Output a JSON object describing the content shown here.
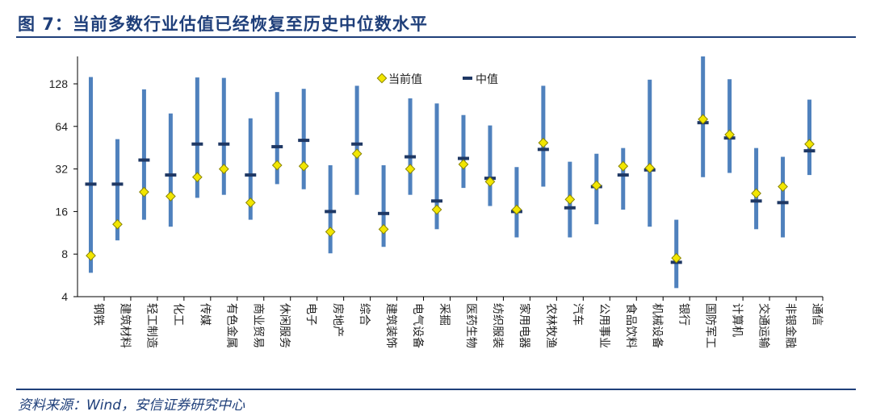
{
  "figure": {
    "title": "图 7：当前多数行业估值已经恢复至历史中位数水平",
    "source": "资料来源：Wind，安信证券研究中心"
  },
  "colors": {
    "range_bar": "#4f81bd",
    "current_marker": "#f2e600",
    "median_marker": "#1f3864",
    "rule": "#1f3f7a"
  },
  "chart_data": {
    "type": "range",
    "scale": "log2",
    "ylim": [
      4,
      200
    ],
    "yticks": [
      4,
      8,
      16,
      32,
      64,
      128
    ],
    "legend": {
      "position": "top-center",
      "entries": [
        "当前值",
        "中值"
      ]
    },
    "categories": [
      "钢铁",
      "建筑材料",
      "轻工制造",
      "化工",
      "传媒",
      "有色金属",
      "商业贸易",
      "休闲服务",
      "电子",
      "房地产",
      "综合",
      "建筑装饰",
      "电气设备",
      "采掘",
      "医药生物",
      "纺织服装",
      "家用电器",
      "农林牧渔",
      "汽车",
      "公用事业",
      "食品饮料",
      "机械设备",
      "银行",
      "国防军工",
      "计算机",
      "交通运输",
      "非银金融",
      "通信"
    ],
    "series": [
      {
        "name": "当前值",
        "values": [
          7.8,
          13,
          22,
          20.5,
          28,
          32,
          18.5,
          34,
          33.5,
          11.5,
          41,
          12,
          32,
          16.5,
          34.5,
          26,
          16.5,
          49,
          19.5,
          24.5,
          33.5,
          32.5,
          7.5,
          72,
          56,
          21.5,
          24,
          48
        ]
      },
      {
        "name": "中值",
        "values": [
          25,
          25,
          37,
          29,
          48,
          48,
          29,
          46,
          51,
          16,
          48,
          15.5,
          39,
          19,
          38,
          27.5,
          16,
          44,
          17,
          24,
          29,
          31.5,
          7,
          68,
          53,
          19,
          18.5,
          43
        ]
      }
    ],
    "range_high": [
      143,
      52,
      117,
      79,
      142,
      141,
      73,
      112,
      118,
      34,
      124,
      34,
      101,
      93,
      77,
      65,
      33,
      124,
      36,
      41,
      45,
      137,
      14,
      200,
      138,
      45,
      39,
      99
    ],
    "range_low": [
      5.9,
      10,
      14,
      12.5,
      20,
      21,
      14,
      25,
      23,
      8.1,
      21,
      9,
      21,
      12,
      23.5,
      17.5,
      10.5,
      24,
      10.5,
      13,
      16.5,
      12.5,
      4.6,
      28,
      30,
      12,
      10.5,
      29
    ]
  }
}
